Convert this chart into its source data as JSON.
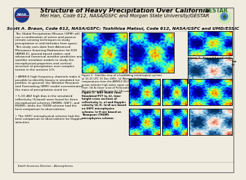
{
  "title": "Structure of Heavy Precipitation Over California",
  "author1": "Mei Han, Code 612, NASA/GSFC and Morgan State University/GESTAR",
  "author2": "Scott A. Braun, Code 612, NASA/GSFC; Toshihisa Matsui, Code 612, NASA/GSFC and UMD/ESSIC",
  "bg_color": "#f0ece0",
  "header_bg": "#e8e2d0",
  "border_color": "#888888",
  "title_fontsize": 6.5,
  "author1_fontsize": 5.0,
  "author2_fontsize": 4.5,
  "body_fontsize": 3.2,
  "caption_fontsize": 2.7,
  "body_text": "The Global Precipitation Mission (GPM) will\nuse a combination of active and passive\nremote-sensing techniques to study\nprecipitation in mid-latitudes from space.\nThis study uses data from Advanced\nMicrowave Scanning Radiometer for EOS\n(AMSR-E), ground-based radars, and\nadvanced numerical weather prediction and\nsatellite simulator models to study the\nmicrophysical properties and vertical\nstructure of precipitation over complex\nterrain in the western U.S.\n\n• AMSR-E high frequency channels make it\npossible to identify biases in simulated ice\nprofiles. In general, the Weather Research\nand Forecasting (WRF) model overestimated\nthe mass of precipitation-sized ice.\n\n• 5-10 dBZ high bias in the simulated\nreflectivity (S-band) were found for three\nmicrophysical schemes (WSM6, GSFC, and\nMORR), while the THOM scheme had the\nbest comparison to observations.\n\n• The GSFC microphysical scheme had the\nbest comparison to observations for Doppler\nvelocities.",
  "fig1_caption": "Figure 1:  Satellite view of a landfalling extratropical cyclone\nat 15:15 UTC 31 Dec 2005. (a) Warmer brightness\ntemperatures from the AMSR-E 89-GHz channels over\nocean indicate high water vapor contents in an atmospheric\nriver. (b) A closer view of Polarization Corrected brightness\nTemperature (PCT) over the CA coast and Sierra Nevada.",
  "fig2_caption": "Figure 2:  Ground-based radar\nTime-height cross-sectional view\non 31 Dec 2005. (a) Reflectivity.\n(b) Doppler velocity.",
  "fig3_caption": "Figure 3:  WRF Model runs:\nSimulated PCT (a, b), time-\nheight cross sections of\nreflectivity (c, e) and Doppler\nvelocity (d, f). (a-d) are based\non GSFC microphysics\nscheme; (e-f) are based on\nThompson (THOM)\nmicrophysics scheme.",
  "footer_text": "Earth Sciences Division - Atmospheres",
  "nasa_logo_color": "#1a3a7a",
  "gestar_text_color": "#2a6a2a"
}
